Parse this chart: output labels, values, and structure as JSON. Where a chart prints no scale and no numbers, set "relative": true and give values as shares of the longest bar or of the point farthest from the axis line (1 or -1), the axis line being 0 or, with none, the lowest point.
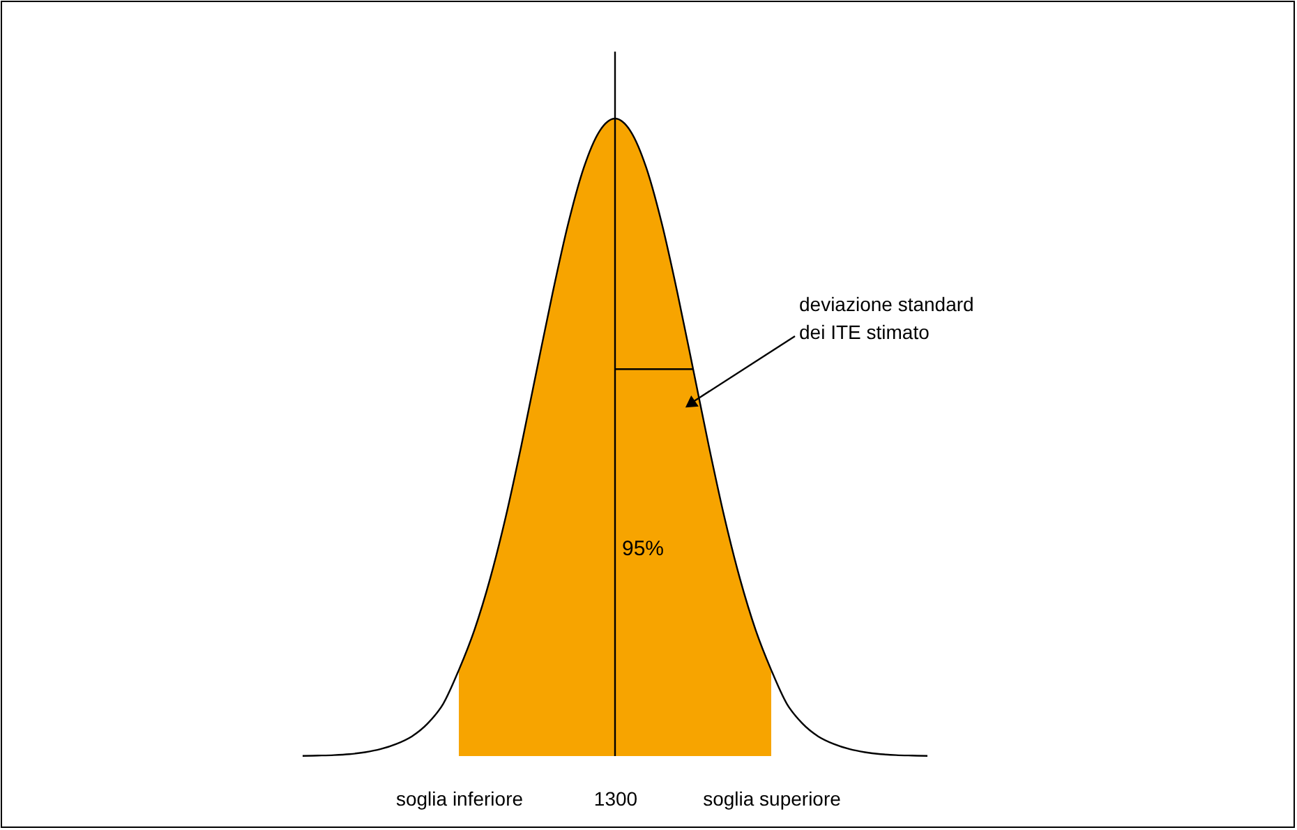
{
  "chart_data": {
    "type": "area",
    "relative": true,
    "categories": [
      null,
      null,
      null,
      null,
      null,
      null,
      null,
      null,
      null,
      null,
      "soglia inferiore",
      null,
      null,
      null,
      null,
      null,
      null,
      null,
      null,
      null,
      "1300",
      null,
      null,
      null,
      null,
      null,
      null,
      null,
      null,
      null,
      "soglia superiore",
      null,
      null,
      null,
      null,
      null,
      null,
      null,
      null,
      null,
      null
    ],
    "series": [
      {
        "color": "#f7a400",
        "values": [
          null,
          null,
          null,
          null,
          null,
          null,
          null,
          null,
          null,
          null,
          0.135,
          0.198,
          0.278,
          0.375,
          0.487,
          0.607,
          0.726,
          0.835,
          0.923,
          0.98,
          1.0,
          0.98,
          0.923,
          0.835,
          0.726,
          0.607,
          0.487,
          0.375,
          0.278,
          0.198,
          0.135,
          null,
          null,
          null,
          null,
          null,
          null,
          null,
          null,
          null,
          null
        ]
      },
      {
        "type": "line",
        "color": "#000000",
        "values": [
          0.0003,
          0.0008,
          0.0015,
          0.003,
          0.006,
          0.011,
          0.019,
          0.031,
          0.051,
          0.082,
          0.135,
          0.198,
          0.278,
          0.375,
          0.487,
          0.607,
          0.726,
          0.835,
          0.923,
          0.98,
          1.0,
          0.98,
          0.923,
          0.835,
          0.726,
          0.607,
          0.487,
          0.375,
          0.278,
          0.198,
          0.135,
          0.082,
          0.051,
          0.031,
          0.019,
          0.011,
          0.006,
          0.003,
          0.0015,
          0.0008,
          0.0003
        ]
      },
      {
        "type": "line",
        "color": "#000000",
        "values": [
          null,
          null,
          null,
          null,
          null,
          null,
          null,
          null,
          null,
          null,
          null,
          null,
          null,
          null,
          null,
          null,
          null,
          null,
          null,
          null,
          0.607,
          0.607,
          0.607,
          0.607,
          0.607,
          0.607,
          null,
          null,
          null,
          null,
          null,
          null,
          null,
          null,
          null,
          null,
          null,
          null,
          null,
          null,
          null
        ]
      }
    ],
    "ref_lines": [
      {
        "axis": "x",
        "value": "1300",
        "color": "#000000"
      }
    ],
    "annotations": [
      "deviazione standard\ndei ITE stimato",
      "95%"
    ],
    "grid": false
  }
}
